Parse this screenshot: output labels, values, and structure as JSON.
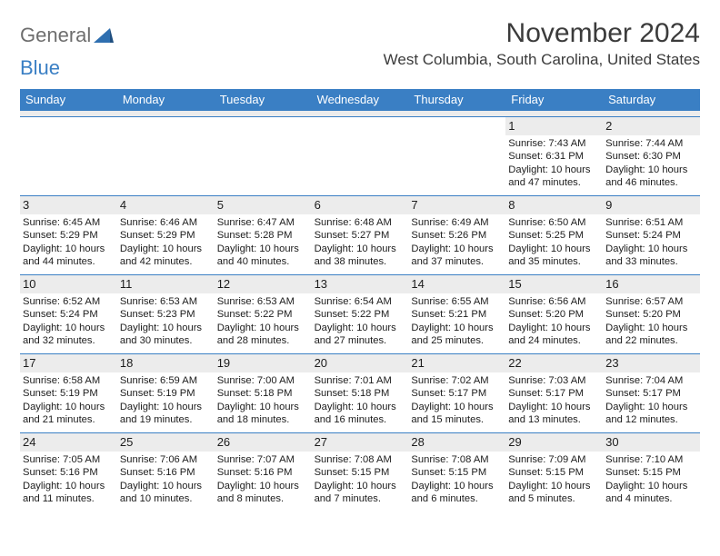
{
  "logo": {
    "part1": "General",
    "part2": "Blue"
  },
  "title": "November 2024",
  "location": "West Columbia, South Carolina, United States",
  "day_names": [
    "Sunday",
    "Monday",
    "Tuesday",
    "Wednesday",
    "Thursday",
    "Friday",
    "Saturday"
  ],
  "colors": {
    "header_bg": "#3a7fc4",
    "header_fg": "#ffffff",
    "daynum_bg": "#ececec",
    "text": "#1c1c1c",
    "title": "#3b3b3b",
    "logo_gray": "#6e6e6e",
    "logo_blue": "#3a7fc4"
  },
  "weeks": [
    [
      {
        "n": "",
        "sr": "",
        "ss": "",
        "dl": ""
      },
      {
        "n": "",
        "sr": "",
        "ss": "",
        "dl": ""
      },
      {
        "n": "",
        "sr": "",
        "ss": "",
        "dl": ""
      },
      {
        "n": "",
        "sr": "",
        "ss": "",
        "dl": ""
      },
      {
        "n": "",
        "sr": "",
        "ss": "",
        "dl": ""
      },
      {
        "n": "1",
        "sr": "Sunrise: 7:43 AM",
        "ss": "Sunset: 6:31 PM",
        "dl": "Daylight: 10 hours and 47 minutes."
      },
      {
        "n": "2",
        "sr": "Sunrise: 7:44 AM",
        "ss": "Sunset: 6:30 PM",
        "dl": "Daylight: 10 hours and 46 minutes."
      }
    ],
    [
      {
        "n": "3",
        "sr": "Sunrise: 6:45 AM",
        "ss": "Sunset: 5:29 PM",
        "dl": "Daylight: 10 hours and 44 minutes."
      },
      {
        "n": "4",
        "sr": "Sunrise: 6:46 AM",
        "ss": "Sunset: 5:29 PM",
        "dl": "Daylight: 10 hours and 42 minutes."
      },
      {
        "n": "5",
        "sr": "Sunrise: 6:47 AM",
        "ss": "Sunset: 5:28 PM",
        "dl": "Daylight: 10 hours and 40 minutes."
      },
      {
        "n": "6",
        "sr": "Sunrise: 6:48 AM",
        "ss": "Sunset: 5:27 PM",
        "dl": "Daylight: 10 hours and 38 minutes."
      },
      {
        "n": "7",
        "sr": "Sunrise: 6:49 AM",
        "ss": "Sunset: 5:26 PM",
        "dl": "Daylight: 10 hours and 37 minutes."
      },
      {
        "n": "8",
        "sr": "Sunrise: 6:50 AM",
        "ss": "Sunset: 5:25 PM",
        "dl": "Daylight: 10 hours and 35 minutes."
      },
      {
        "n": "9",
        "sr": "Sunrise: 6:51 AM",
        "ss": "Sunset: 5:24 PM",
        "dl": "Daylight: 10 hours and 33 minutes."
      }
    ],
    [
      {
        "n": "10",
        "sr": "Sunrise: 6:52 AM",
        "ss": "Sunset: 5:24 PM",
        "dl": "Daylight: 10 hours and 32 minutes."
      },
      {
        "n": "11",
        "sr": "Sunrise: 6:53 AM",
        "ss": "Sunset: 5:23 PM",
        "dl": "Daylight: 10 hours and 30 minutes."
      },
      {
        "n": "12",
        "sr": "Sunrise: 6:53 AM",
        "ss": "Sunset: 5:22 PM",
        "dl": "Daylight: 10 hours and 28 minutes."
      },
      {
        "n": "13",
        "sr": "Sunrise: 6:54 AM",
        "ss": "Sunset: 5:22 PM",
        "dl": "Daylight: 10 hours and 27 minutes."
      },
      {
        "n": "14",
        "sr": "Sunrise: 6:55 AM",
        "ss": "Sunset: 5:21 PM",
        "dl": "Daylight: 10 hours and 25 minutes."
      },
      {
        "n": "15",
        "sr": "Sunrise: 6:56 AM",
        "ss": "Sunset: 5:20 PM",
        "dl": "Daylight: 10 hours and 24 minutes."
      },
      {
        "n": "16",
        "sr": "Sunrise: 6:57 AM",
        "ss": "Sunset: 5:20 PM",
        "dl": "Daylight: 10 hours and 22 minutes."
      }
    ],
    [
      {
        "n": "17",
        "sr": "Sunrise: 6:58 AM",
        "ss": "Sunset: 5:19 PM",
        "dl": "Daylight: 10 hours and 21 minutes."
      },
      {
        "n": "18",
        "sr": "Sunrise: 6:59 AM",
        "ss": "Sunset: 5:19 PM",
        "dl": "Daylight: 10 hours and 19 minutes."
      },
      {
        "n": "19",
        "sr": "Sunrise: 7:00 AM",
        "ss": "Sunset: 5:18 PM",
        "dl": "Daylight: 10 hours and 18 minutes."
      },
      {
        "n": "20",
        "sr": "Sunrise: 7:01 AM",
        "ss": "Sunset: 5:18 PM",
        "dl": "Daylight: 10 hours and 16 minutes."
      },
      {
        "n": "21",
        "sr": "Sunrise: 7:02 AM",
        "ss": "Sunset: 5:17 PM",
        "dl": "Daylight: 10 hours and 15 minutes."
      },
      {
        "n": "22",
        "sr": "Sunrise: 7:03 AM",
        "ss": "Sunset: 5:17 PM",
        "dl": "Daylight: 10 hours and 13 minutes."
      },
      {
        "n": "23",
        "sr": "Sunrise: 7:04 AM",
        "ss": "Sunset: 5:17 PM",
        "dl": "Daylight: 10 hours and 12 minutes."
      }
    ],
    [
      {
        "n": "24",
        "sr": "Sunrise: 7:05 AM",
        "ss": "Sunset: 5:16 PM",
        "dl": "Daylight: 10 hours and 11 minutes."
      },
      {
        "n": "25",
        "sr": "Sunrise: 7:06 AM",
        "ss": "Sunset: 5:16 PM",
        "dl": "Daylight: 10 hours and 10 minutes."
      },
      {
        "n": "26",
        "sr": "Sunrise: 7:07 AM",
        "ss": "Sunset: 5:16 PM",
        "dl": "Daylight: 10 hours and 8 minutes."
      },
      {
        "n": "27",
        "sr": "Sunrise: 7:08 AM",
        "ss": "Sunset: 5:15 PM",
        "dl": "Daylight: 10 hours and 7 minutes."
      },
      {
        "n": "28",
        "sr": "Sunrise: 7:08 AM",
        "ss": "Sunset: 5:15 PM",
        "dl": "Daylight: 10 hours and 6 minutes."
      },
      {
        "n": "29",
        "sr": "Sunrise: 7:09 AM",
        "ss": "Sunset: 5:15 PM",
        "dl": "Daylight: 10 hours and 5 minutes."
      },
      {
        "n": "30",
        "sr": "Sunrise: 7:10 AM",
        "ss": "Sunset: 5:15 PM",
        "dl": "Daylight: 10 hours and 4 minutes."
      }
    ]
  ]
}
